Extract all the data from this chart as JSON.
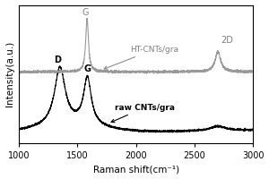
{
  "title": "",
  "xlabel": "Raman shift(cm⁻¹)",
  "ylabel": "Intensity(a.u.)",
  "xlim": [
    1000,
    3000
  ],
  "x_ticks": [
    1000,
    1500,
    2000,
    2500,
    3000
  ],
  "background_color": "#ffffff",
  "raw_color": "#000000",
  "ht_color": "#999999",
  "raw_label": "raw CNTs/gra",
  "ht_label": "HT-CNTs/gra",
  "raw_baseline": 0.08,
  "ht_baseline": 0.62
}
